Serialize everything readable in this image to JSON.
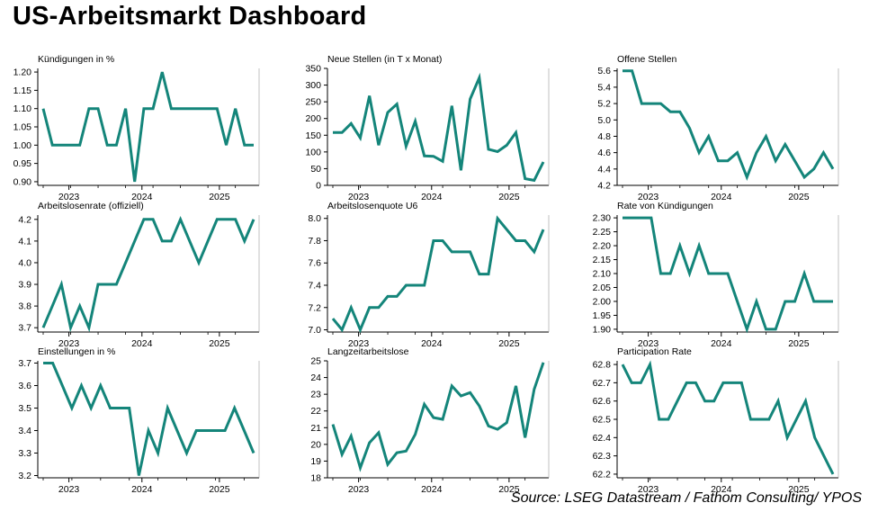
{
  "page_title": "US-Arbeitsmarkt Dashboard",
  "source": "Source: LSEG Datastream / Fathom Consulting/ YPOS",
  "colors": {
    "line": "#14857a",
    "axis": "#000000",
    "background": "#ffffff"
  },
  "chart_data": [
    {
      "type": "line",
      "title": "Kündigungen in %",
      "y": [
        1.1,
        1.0,
        1.0,
        1.0,
        1.0,
        1.1,
        1.1,
        1.0,
        1.0,
        1.1,
        0.9,
        1.1,
        1.1,
        1.2,
        1.1,
        1.1,
        1.1,
        1.1,
        1.1,
        1.1,
        1.0,
        1.1,
        1.0,
        1.0
      ],
      "ylim": [
        0.89,
        1.21
      ],
      "yticks": [
        "1.20",
        "1.15",
        "1.10",
        "1.05",
        "1.00",
        "0.95",
        "0.90"
      ],
      "xticks": [
        "2023",
        "2024",
        "2025"
      ]
    },
    {
      "type": "line",
      "title": "Neue Stellen (in T x Monat)",
      "y": [
        158,
        158,
        185,
        142,
        268,
        120,
        218,
        243,
        117,
        192,
        88,
        87,
        72,
        238,
        45,
        258,
        322,
        108,
        101,
        120,
        158,
        20,
        15,
        70
      ],
      "ylim": [
        0,
        350
      ],
      "yticks": [
        "350",
        "300",
        "250",
        "200",
        "150",
        "100",
        "50",
        "0"
      ],
      "xticks": [
        "2023",
        "2024",
        "2025"
      ]
    },
    {
      "type": "line",
      "title": "Offene Stellen",
      "y": [
        5.6,
        5.6,
        5.2,
        5.2,
        5.2,
        5.1,
        5.1,
        4.9,
        4.6,
        4.8,
        4.5,
        4.5,
        4.6,
        4.3,
        4.6,
        4.8,
        4.5,
        4.7,
        4.5,
        4.3,
        4.4,
        4.6,
        4.4
      ],
      "ylim": [
        4.2,
        5.63
      ],
      "yticks": [
        "5.6",
        "5.4",
        "5.2",
        "5.0",
        "4.8",
        "4.6",
        "4.4",
        "4.2"
      ],
      "xticks": [
        "2023",
        "2024",
        "2025"
      ]
    },
    {
      "type": "line",
      "title": "Arbeitslosenrate (offiziell)",
      "y": [
        3.7,
        3.8,
        3.9,
        3.7,
        3.8,
        3.7,
        3.9,
        3.9,
        3.9,
        4.0,
        4.1,
        4.2,
        4.2,
        4.1,
        4.1,
        4.2,
        4.1,
        4.0,
        4.1,
        4.2,
        4.2,
        4.2,
        4.1,
        4.2
      ],
      "ylim": [
        3.68,
        4.22
      ],
      "yticks": [
        "4.2",
        "4.1",
        "4.0",
        "3.9",
        "3.8",
        "3.7"
      ],
      "xticks": [
        "2023",
        "2024",
        "2025"
      ]
    },
    {
      "type": "line",
      "title": "Arbeitslosenquote U6",
      "y": [
        7.1,
        7.0,
        7.2,
        7.0,
        7.2,
        7.2,
        7.3,
        7.3,
        7.4,
        7.4,
        7.4,
        7.8,
        7.8,
        7.7,
        7.7,
        7.7,
        7.5,
        7.5,
        8.0,
        7.9,
        7.8,
        7.8,
        7.7,
        7.9
      ],
      "ylim": [
        6.98,
        8.03
      ],
      "yticks": [
        "8.0",
        "7.8",
        "7.6",
        "7.4",
        "7.2",
        "7.0"
      ],
      "xticks": [
        "2023",
        "2024",
        "2025"
      ]
    },
    {
      "type": "line",
      "title": "Rate von Kündigungen",
      "y": [
        2.3,
        2.3,
        2.3,
        2.3,
        2.1,
        2.1,
        2.2,
        2.1,
        2.2,
        2.1,
        2.1,
        2.1,
        2.0,
        1.9,
        2.0,
        1.9,
        1.9,
        2.0,
        2.0,
        2.1,
        2.0,
        2.0,
        2.0
      ],
      "ylim": [
        1.89,
        2.31
      ],
      "yticks": [
        "2.30",
        "2.25",
        "2.20",
        "2.15",
        "2.10",
        "2.05",
        "2.00",
        "1.95",
        "1.90"
      ],
      "xticks": [
        "2023",
        "2024",
        "2025"
      ]
    },
    {
      "type": "line",
      "title": "Einstellungen in %",
      "y": [
        3.7,
        3.7,
        3.6,
        3.5,
        3.6,
        3.5,
        3.6,
        3.5,
        3.5,
        3.5,
        3.2,
        3.4,
        3.3,
        3.5,
        3.4,
        3.3,
        3.4,
        3.4,
        3.4,
        3.4,
        3.5,
        3.4,
        3.3
      ],
      "ylim": [
        3.19,
        3.71
      ],
      "yticks": [
        "3.7",
        "3.6",
        "3.5",
        "3.4",
        "3.3",
        "3.2"
      ],
      "xticks": [
        "2023",
        "2024",
        "2025"
      ]
    },
    {
      "type": "line",
      "title": "Langzeitarbeitslose",
      "y": [
        21.2,
        19.4,
        20.5,
        18.6,
        20.1,
        20.7,
        18.8,
        19.5,
        19.6,
        20.6,
        22.4,
        21.6,
        21.5,
        23.5,
        22.9,
        23.1,
        22.3,
        21.1,
        20.9,
        21.3,
        23.5,
        20.4,
        23.3,
        24.9
      ],
      "ylim": [
        18,
        25
      ],
      "yticks": [
        "25",
        "24",
        "23",
        "22",
        "21",
        "20",
        "19",
        "18"
      ],
      "xticks": [
        "2023",
        "2024",
        "2025"
      ]
    },
    {
      "type": "line",
      "title": "Participation Rate",
      "y": [
        62.8,
        62.7,
        62.7,
        62.8,
        62.5,
        62.5,
        62.6,
        62.7,
        62.7,
        62.6,
        62.6,
        62.7,
        62.7,
        62.7,
        62.5,
        62.5,
        62.5,
        62.6,
        62.4,
        62.5,
        62.6,
        62.4,
        62.3,
        62.2
      ],
      "ylim": [
        62.18,
        62.82
      ],
      "yticks": [
        "62.8",
        "62.7",
        "62.6",
        "62.5",
        "62.4",
        "62.3",
        "62.2"
      ],
      "xticks": [
        "2023",
        "2024",
        "2025"
      ]
    }
  ]
}
